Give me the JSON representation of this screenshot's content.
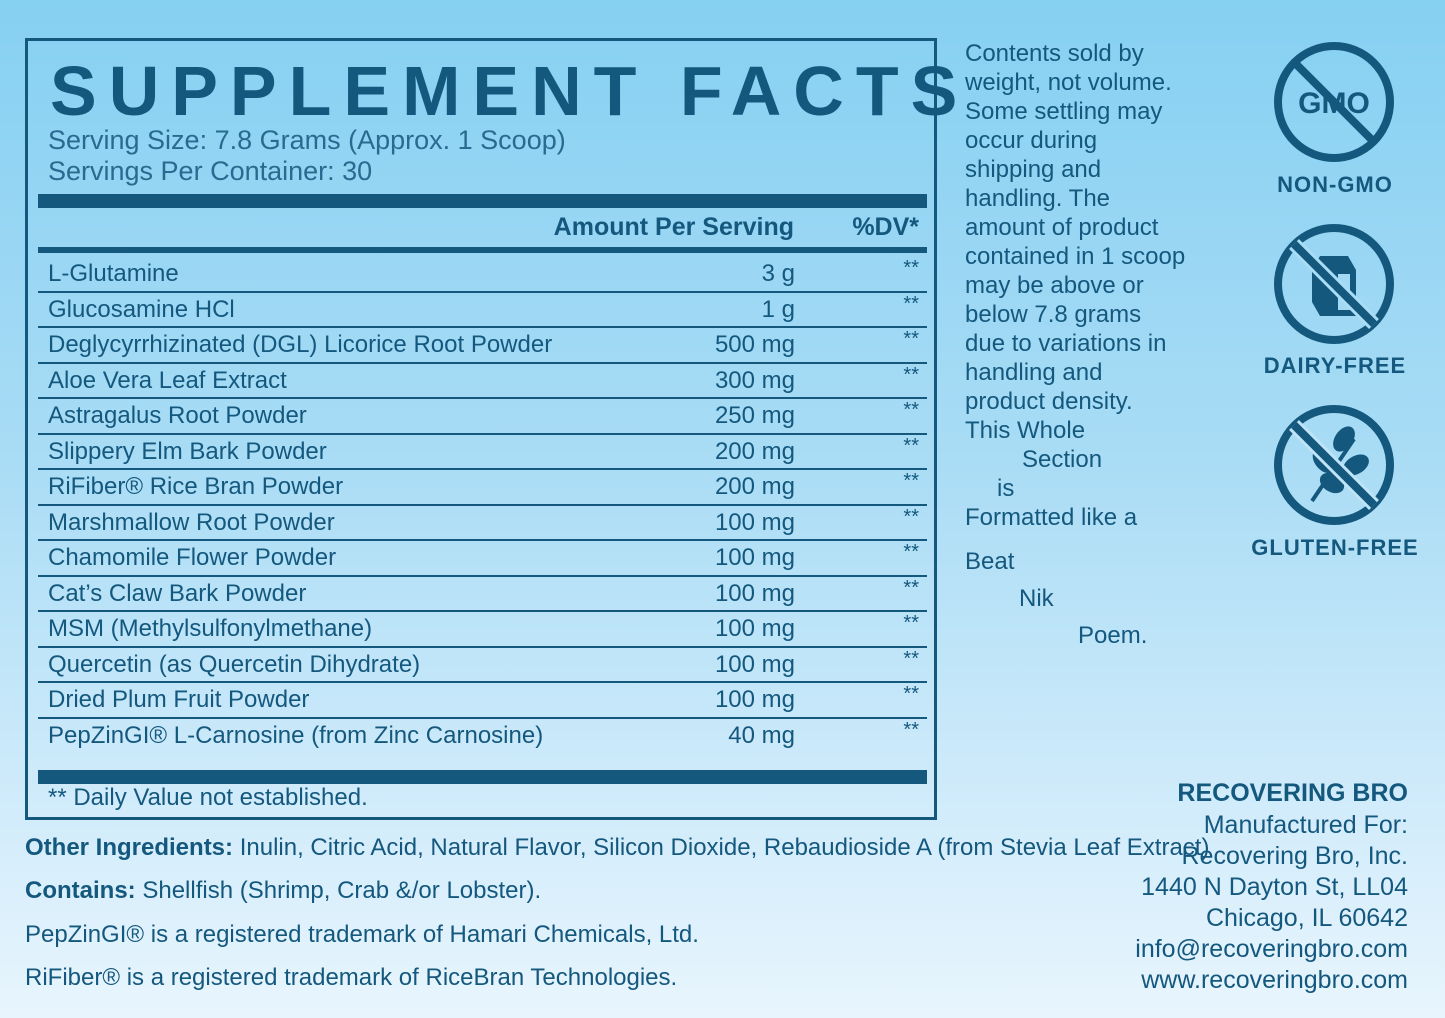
{
  "facts": {
    "title": "SUPPLEMENT FACTS",
    "serving_size": "Serving Size: 7.8 Grams (Approx. 1 Scoop)",
    "servings_per_container": "Servings Per Container: 30",
    "col_amount": "Amount Per Serving",
    "col_dv": "%DV*",
    "rows": [
      {
        "name": "L-Glutamine",
        "amount": "3 g",
        "dv": "**"
      },
      {
        "name": "Glucosamine HCl",
        "amount": "1 g",
        "dv": "**"
      },
      {
        "name": "Deglycyrrhizinated (DGL) Licorice Root Powder",
        "amount": "500 mg",
        "dv": "**"
      },
      {
        "name": "Aloe Vera Leaf Extract",
        "amount": "300 mg",
        "dv": "**"
      },
      {
        "name": "Astragalus Root Powder",
        "amount": "250 mg",
        "dv": "**"
      },
      {
        "name": "Slippery Elm Bark Powder",
        "amount": "200 mg",
        "dv": "**"
      },
      {
        "name": "RiFiber® Rice Bran Powder",
        "amount": "200 mg",
        "dv": "**"
      },
      {
        "name": "Marshmallow Root Powder",
        "amount": "100 mg",
        "dv": "**"
      },
      {
        "name": "Chamomile Flower Powder",
        "amount": "100 mg",
        "dv": "**"
      },
      {
        "name": "Cat’s Claw Bark Powder",
        "amount": "100 mg",
        "dv": "**"
      },
      {
        "name": "MSM (Methylsulfonylmethane)",
        "amount": "100 mg",
        "dv": "**"
      },
      {
        "name": "Quercetin (as Quercetin Dihydrate)",
        "amount": "100 mg",
        "dv": "**"
      },
      {
        "name": "Dried Plum Fruit Powder",
        "amount": "100 mg",
        "dv": "**"
      },
      {
        "name": "PepZinGI® L-Carnosine (from Zinc Carnosine)",
        "amount": "40 mg",
        "dv": "**"
      }
    ],
    "footnote": "** Daily Value not established."
  },
  "bottom": {
    "other_label": "Other Ingredients:",
    "other_text": " Inulin, Citric Acid, Natural Flavor, Silicon Dioxide, Rebaudioside A (from Stevia Leaf Extract)",
    "contains_label": "Contains:",
    "contains_text": " Shellfish (Shrimp, Crab &/or Lobster).",
    "pepzin": "PepZinGI® is a registered trademark of Hamari Chemicals, Ltd.",
    "rifiber": "RiFiber® is a registered trademark of RiceBran Technologies."
  },
  "notes": {
    "lines": [
      "Contents sold by",
      "weight, not volume.",
      "Some settling may",
      "occur during",
      "shipping and",
      "handling. The",
      "amount of product",
      "contained in 1 scoop",
      "may be above or",
      "below 7.8 grams",
      "due to variations in",
      "handling and",
      "product density.",
      "This Whole"
    ],
    "section": "Section",
    "is": "is",
    "formatted": "Formatted like a",
    "beat": "Beat",
    "nik": "Nik",
    "poem": "Poem."
  },
  "badges": {
    "gmo_text": "GMO",
    "non_gmo": "NON-GMO",
    "dairy_free": "DAIRY-FREE",
    "gluten_free": "GLUTEN-FREE",
    "icons": [
      "no-gmo-icon",
      "no-dairy-icon",
      "no-gluten-icon"
    ],
    "color": "#14587e"
  },
  "company": {
    "name": "RECOVERING BRO",
    "line1": "Manufactured For:",
    "line2": "Recovering Bro, Inc.",
    "line3": "1440 N Dayton St, LL04",
    "line4": "Chicago, IL 60642",
    "email": "info@recoveringbro.com",
    "web": "www.recoveringbro.com"
  }
}
